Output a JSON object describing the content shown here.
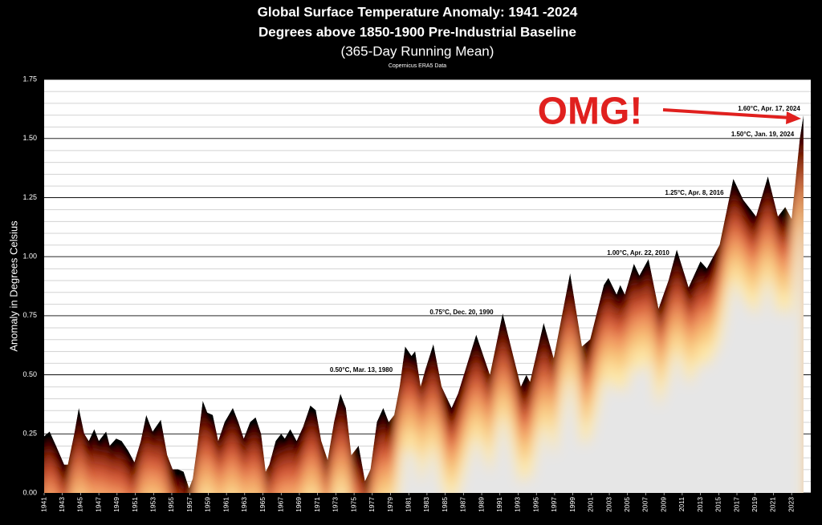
{
  "chart_data": {
    "type": "area",
    "title": "Global Surface Temperature Anomaly: 1941 -2024",
    "subtitle": "Degrees above 1850-1900 Pre-Industrial Baseline",
    "subtitle2": "(365-Day Running Mean)",
    "source": "Copernicus ERA5 Data",
    "ylabel": "Anomaly in Degrees Celsius",
    "color": "#000000",
    "x": [
      1941.0,
      1941.6,
      1942.3,
      1943.2,
      1943.6,
      1944.3,
      1944.8,
      1945.4,
      1945.9,
      1946.5,
      1947.0,
      1947.8,
      1948.2,
      1948.9,
      1949.5,
      1950.2,
      1950.9,
      1951.6,
      1952.2,
      1952.9,
      1953.8,
      1954.5,
      1955.1,
      1955.7,
      1956.3,
      1956.9,
      1957.3,
      1957.8,
      1958.4,
      1958.9,
      1959.5,
      1960.1,
      1960.8,
      1961.7,
      1962.3,
      1962.9,
      1963.6,
      1964.2,
      1964.8,
      1965.3,
      1965.7,
      1966.4,
      1967.0,
      1967.4,
      1968.0,
      1968.7,
      1969.4,
      1970.2,
      1970.8,
      1971.4,
      1972.1,
      1972.8,
      1973.5,
      1974.1,
      1974.7,
      1975.5,
      1976.2,
      1976.8,
      1977.5,
      1978.2,
      1978.8,
      1979.4,
      1980.0,
      1980.6,
      1981.3,
      1981.7,
      1982.3,
      1982.8,
      1983.7,
      1984.6,
      1985.7,
      1986.4,
      1987.2,
      1988.4,
      1989.9,
      1991.3,
      1993.3,
      1993.9,
      1994.3,
      1995.8,
      1996.9,
      1998.7,
      2000.0,
      2000.9,
      2002.4,
      2002.9,
      2003.8,
      2004.2,
      2004.7,
      2005.7,
      2006.3,
      2007.3,
      2008.4,
      2009.5,
      2010.4,
      2011.7,
      2013.0,
      2013.7,
      2015.1,
      2016.6,
      2017.7,
      2019.1,
      2020.4,
      2021.5,
      2022.3,
      2023.0,
      2023.9,
      2024.3
    ],
    "values": [
      0.24,
      0.26,
      0.2,
      0.12,
      0.12,
      0.25,
      0.36,
      0.25,
      0.22,
      0.27,
      0.22,
      0.26,
      0.2,
      0.23,
      0.22,
      0.18,
      0.13,
      0.22,
      0.33,
      0.26,
      0.31,
      0.16,
      0.1,
      0.1,
      0.09,
      0.02,
      0.06,
      0.2,
      0.39,
      0.34,
      0.33,
      0.22,
      0.3,
      0.36,
      0.3,
      0.23,
      0.3,
      0.32,
      0.25,
      0.09,
      0.12,
      0.22,
      0.25,
      0.23,
      0.27,
      0.22,
      0.28,
      0.37,
      0.35,
      0.22,
      0.14,
      0.3,
      0.42,
      0.36,
      0.16,
      0.2,
      0.05,
      0.1,
      0.3,
      0.36,
      0.3,
      0.33,
      0.45,
      0.62,
      0.58,
      0.6,
      0.45,
      0.52,
      0.63,
      0.45,
      0.36,
      0.42,
      0.52,
      0.67,
      0.5,
      0.76,
      0.45,
      0.5,
      0.47,
      0.72,
      0.57,
      0.93,
      0.62,
      0.65,
      0.88,
      0.91,
      0.84,
      0.88,
      0.84,
      0.97,
      0.92,
      0.99,
      0.78,
      0.9,
      1.03,
      0.87,
      0.98,
      0.95,
      1.05,
      1.33,
      1.24,
      1.17,
      1.34,
      1.17,
      1.21,
      1.16,
      1.5,
      1.6
    ],
    "xlim": [
      1941,
      2025.1
    ],
    "xticks": [
      1941,
      1943,
      1945,
      1947,
      1949,
      1951,
      1953,
      1955,
      1957,
      1959,
      1961,
      1963,
      1965,
      1967,
      1969,
      1971,
      1973,
      1975,
      1977,
      1979,
      1981,
      1983,
      1985,
      1987,
      1989,
      1991,
      1993,
      1995,
      1997,
      1999,
      2001,
      2003,
      2005,
      2007,
      2009,
      2011,
      2013,
      2015,
      2017,
      2019,
      2021,
      2023
    ],
    "ylim": [
      0,
      1.75
    ],
    "yticks": [
      {
        "value": 0,
        "label": "0.00"
      },
      {
        "value": 0.25,
        "label": "0.25"
      },
      {
        "value": 0.5,
        "label": "0.50"
      },
      {
        "value": 0.75,
        "label": "0.75"
      },
      {
        "value": 1,
        "label": "1.00"
      },
      {
        "value": 1.25,
        "label": "1.25"
      },
      {
        "value": 1.5,
        "label": "1.50"
      },
      {
        "value": 1.75,
        "label": "1.75"
      }
    ],
    "grid": true,
    "annotations": [
      "1.60°C, Apr. 17, 2024",
      "1.50°C, Jan. 19, 2024",
      "1.25°C, Apr. 8, 2016",
      "1.00°C, Apr. 22, 2010",
      "0.75°C, Dec. 20, 1990",
      "0.50°C, Mar. 13, 1980",
      "OMG!"
    ]
  }
}
